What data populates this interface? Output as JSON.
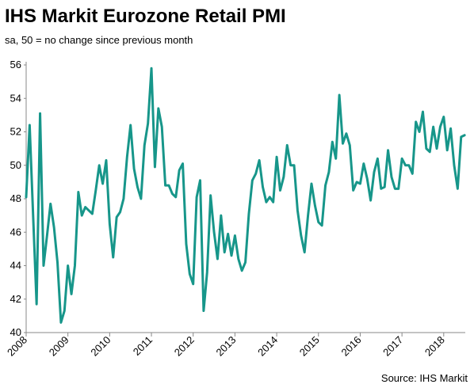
{
  "chart_data": {
    "type": "line",
    "title": "IHS Markit Eurozone Retail PMI",
    "subtitle": "sa, 50 = no change since previous month",
    "source": "Source: IHS Markit",
    "categories": [
      "2008",
      null,
      null,
      null,
      null,
      null,
      null,
      null,
      null,
      null,
      null,
      null,
      "2009",
      null,
      null,
      null,
      null,
      null,
      null,
      null,
      null,
      null,
      null,
      null,
      "2010",
      null,
      null,
      null,
      null,
      null,
      null,
      null,
      null,
      null,
      null,
      null,
      "2011",
      null,
      null,
      null,
      null,
      null,
      null,
      null,
      null,
      null,
      null,
      null,
      "2012",
      null,
      null,
      null,
      null,
      null,
      null,
      null,
      null,
      null,
      null,
      null,
      "2013",
      null,
      null,
      null,
      null,
      null,
      null,
      null,
      null,
      null,
      null,
      null,
      "2014",
      null,
      null,
      null,
      null,
      null,
      null,
      null,
      null,
      null,
      null,
      null,
      "2015",
      null,
      null,
      null,
      null,
      null,
      null,
      null,
      null,
      null,
      null,
      null,
      "2016",
      null,
      null,
      null,
      null,
      null,
      null,
      null,
      null,
      null,
      null,
      null,
      "2017",
      null,
      null,
      null,
      null,
      null,
      null,
      null,
      null,
      null,
      null,
      null,
      "2018",
      null,
      null,
      null,
      null,
      null,
      null
    ],
    "series": [
      {
        "name": "Eurozone Retail PMI",
        "color": "#17968a",
        "values": [
          48.1,
          52.4,
          47.0,
          41.7,
          53.1,
          44.0,
          45.8,
          47.7,
          46.3,
          44.2,
          40.6,
          41.3,
          44.0,
          42.3,
          44.0,
          48.4,
          47.0,
          47.5,
          47.3,
          47.1,
          48.5,
          50.0,
          48.9,
          50.3,
          46.5,
          44.5,
          46.9,
          47.2,
          48.0,
          50.5,
          52.4,
          49.8,
          48.7,
          48.0,
          51.2,
          52.5,
          55.8,
          49.9,
          53.4,
          52.3,
          48.8,
          48.8,
          48.3,
          48.1,
          49.7,
          50.1,
          45.3,
          43.5,
          42.9,
          48.1,
          49.1,
          41.3,
          43.6,
          48.2,
          46.0,
          44.4,
          47.0,
          44.8,
          45.9,
          44.6,
          45.8,
          44.4,
          43.7,
          44.2,
          47.1,
          49.1,
          49.5,
          50.3,
          48.7,
          47.8,
          48.1,
          47.8,
          50.5,
          48.5,
          49.3,
          51.2,
          50.0,
          50.0,
          47.3,
          45.8,
          44.8,
          47.0,
          48.9,
          47.6,
          46.6,
          46.4,
          48.8,
          49.6,
          51.4,
          50.4,
          54.2,
          51.3,
          51.9,
          51.2,
          48.5,
          49.0,
          48.9,
          50.1,
          49.2,
          47.9,
          49.6,
          50.4,
          48.6,
          48.7,
          50.9,
          49.3,
          48.6,
          48.6,
          50.4,
          50.0,
          50.0,
          49.5,
          52.6,
          52.0,
          53.2,
          51.0,
          50.8,
          52.3,
          51.0,
          52.3,
          52.9,
          50.9,
          52.2,
          50.0,
          48.6,
          51.7,
          51.8
        ]
      }
    ],
    "ylim": [
      40,
      56
    ],
    "yticks": [
      40,
      42,
      44,
      46,
      48,
      50,
      52,
      54,
      56
    ],
    "grid": false
  }
}
